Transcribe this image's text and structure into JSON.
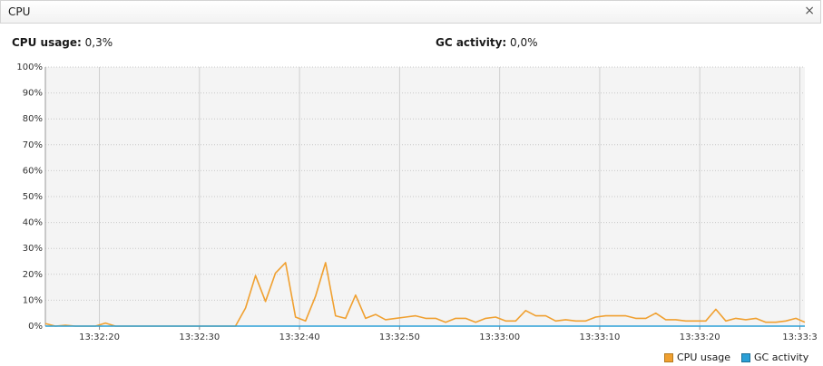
{
  "panel": {
    "title": "CPU",
    "close_glyph": "×"
  },
  "stats": {
    "cpu": {
      "label": "CPU usage:",
      "value": "0,3%"
    },
    "gc": {
      "label": "GC activity:",
      "value": "0,0%"
    }
  },
  "chart_data": {
    "type": "line",
    "ylim": [
      0,
      100
    ],
    "yticks": [
      "0%",
      "10%",
      "20%",
      "30%",
      "40%",
      "50%",
      "60%",
      "70%",
      "80%",
      "90%",
      "100%"
    ],
    "x_range": [
      "13:32:14.6",
      "13:33:30.5"
    ],
    "xticks": [
      "13:32:20",
      "13:32:30",
      "13:32:40",
      "13:32:50",
      "13:33:00",
      "13:33:10",
      "13:33:20",
      "13:33:3"
    ],
    "grid": true,
    "legend": "bottom-right",
    "colors": {
      "cpu": "#f0a030",
      "gc": "#2a9fd6"
    },
    "series": [
      {
        "name": "CPU usage",
        "x": [
          "13:32:14.6",
          "13:32:15.6",
          "13:32:16.6",
          "13:32:17.6",
          "13:32:18.6",
          "13:32:19.6",
          "13:32:20.6",
          "13:32:21.6",
          "13:32:22.6",
          "13:32:23.6",
          "13:32:24.6",
          "13:32:25.6",
          "13:32:26.6",
          "13:32:27.6",
          "13:32:28.6",
          "13:32:29.6",
          "13:32:30.6",
          "13:32:31.6",
          "13:32:32.6",
          "13:32:33.6",
          "13:32:34.6",
          "13:32:35.6",
          "13:32:36.6",
          "13:32:37.6",
          "13:32:38.6",
          "13:32:39.6",
          "13:32:40.6",
          "13:32:41.6",
          "13:32:42.6",
          "13:32:43.6",
          "13:32:44.6",
          "13:32:45.6",
          "13:32:46.6",
          "13:32:47.6",
          "13:32:48.6",
          "13:32:49.6",
          "13:32:50.6",
          "13:32:51.6",
          "13:32:52.6",
          "13:32:53.6",
          "13:32:54.6",
          "13:32:55.6",
          "13:32:56.6",
          "13:32:57.6",
          "13:32:58.6",
          "13:32:59.6",
          "13:33:00.6",
          "13:33:01.6",
          "13:33:02.6",
          "13:33:03.6",
          "13:33:04.6",
          "13:33:05.6",
          "13:33:06.6",
          "13:33:07.6",
          "13:33:08.6",
          "13:33:09.6",
          "13:33:10.6",
          "13:33:11.6",
          "13:33:12.6",
          "13:33:13.6",
          "13:33:14.6",
          "13:33:15.6",
          "13:33:16.6",
          "13:33:17.6",
          "13:33:18.6",
          "13:33:19.6",
          "13:33:20.6",
          "13:33:21.6",
          "13:33:22.6",
          "13:33:23.6",
          "13:33:24.6",
          "13:33:25.6",
          "13:33:26.6",
          "13:33:27.6",
          "13:33:28.6",
          "13:33:29.6",
          "13:33:30.5"
        ],
        "values": [
          1,
          0,
          0.3,
          0,
          0,
          0,
          1.2,
          0,
          0,
          0,
          0,
          0,
          0,
          0,
          0,
          0,
          0,
          0,
          0,
          0,
          7,
          19.5,
          9.5,
          20.5,
          24.5,
          3.5,
          2,
          11.5,
          24.5,
          4,
          3,
          12,
          3,
          4.5,
          2.5,
          3,
          3.5,
          4,
          3,
          3,
          1.5,
          3,
          3,
          1.5,
          3,
          3.5,
          2,
          2,
          6,
          4,
          4,
          2,
          2.5,
          2,
          2,
          3.5,
          4,
          4,
          4,
          3,
          3,
          5,
          2.5,
          2.5,
          2,
          2,
          2,
          6.5,
          2,
          3,
          2.5,
          3,
          1.5,
          1.5,
          2,
          3,
          1.5
        ]
      },
      {
        "name": "GC activity",
        "x": [
          "13:32:14.6",
          "13:33:30.5"
        ],
        "values": [
          0,
          0
        ]
      }
    ]
  }
}
